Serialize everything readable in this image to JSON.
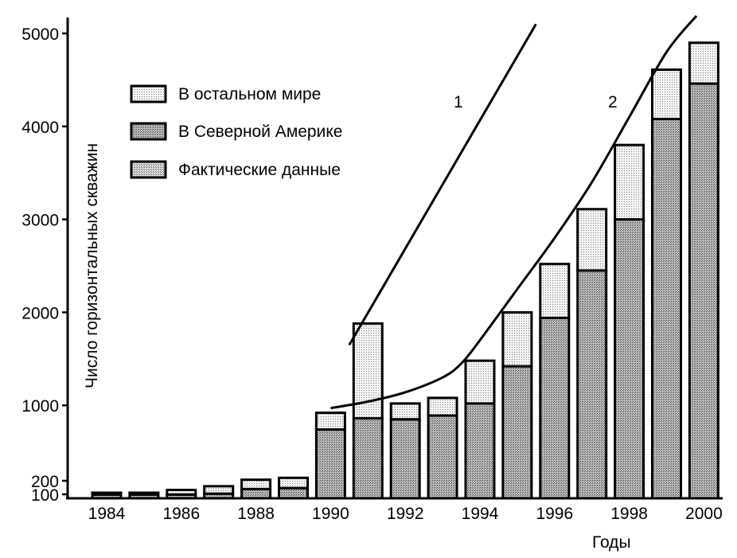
{
  "chart_data": {
    "type": "bar",
    "stacked": true,
    "xlabel": "Годы",
    "ylabel": "Число горизонтальных скважин",
    "categories": [
      "1984",
      "1985",
      "1986",
      "1987",
      "1988",
      "1989",
      "1990",
      "1991",
      "1992",
      "1993",
      "1994",
      "1995",
      "1996",
      "1997",
      "1998",
      "1999",
      "2000"
    ],
    "x_tick_labels": [
      "1984",
      "1986",
      "1988",
      "1990",
      "1992",
      "1994",
      "1996",
      "1998",
      "2000"
    ],
    "y_tick_labels": [
      "100",
      "200",
      "1000",
      "2000",
      "3000",
      "4000",
      "5000"
    ],
    "ylim": [
      0,
      5100
    ],
    "series": [
      {
        "name": "В Северной Америке",
        "values": [
          40,
          40,
          40,
          50,
          100,
          110,
          740,
          860,
          850,
          890,
          1020,
          1420,
          1940,
          2450,
          3000,
          4080,
          4460
        ]
      },
      {
        "name": "В остальном мире",
        "values": [
          20,
          20,
          50,
          80,
          100,
          110,
          180,
          1020,
          170,
          190,
          460,
          580,
          580,
          660,
          800,
          530,
          440
        ]
      }
    ],
    "legend": [
      "В остальном мире",
      "В Северной Америке",
      "Фактические данные"
    ],
    "legend_position": "top-left",
    "curves": [
      {
        "label": "1",
        "x": [
          1990.5,
          1995.5
        ],
        "y": [
          1650,
          5100
        ]
      },
      {
        "label": "2",
        "x": [
          1990,
          1991,
          1992,
          1993,
          1993.5,
          1994,
          1995,
          1996,
          1997,
          1998,
          1999,
          1999.8
        ],
        "y": [
          970,
          1040,
          1140,
          1300,
          1450,
          1700,
          2250,
          2800,
          3400,
          4100,
          4800,
          5200
        ]
      }
    ],
    "colors": {
      "north_america": "#b8b8b8",
      "rest_of_world": "#e6e6e6",
      "actual": "#cfcfcf",
      "line": "#000000"
    }
  }
}
